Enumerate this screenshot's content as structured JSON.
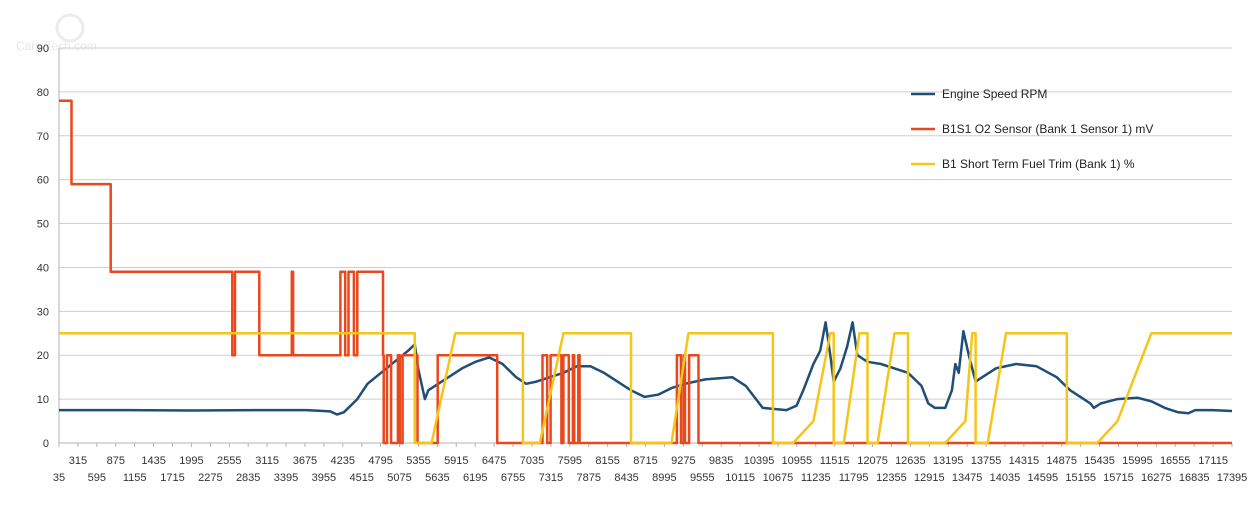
{
  "watermark": "Cars-Tech.com",
  "chart_data": {
    "type": "line",
    "x_first": 35,
    "x_step": 140,
    "x_last": 17395,
    "ylim": [
      0,
      90
    ],
    "y_ticks": [
      0,
      10,
      20,
      30,
      40,
      50,
      60,
      70,
      80,
      90
    ],
    "y_tick_labels": [
      "0",
      "10",
      "20",
      "30",
      "40",
      "50",
      "60",
      "70",
      "80",
      "90"
    ],
    "x_tick_labels_upper": [
      "315",
      "875",
      "1435",
      "1995",
      "2555",
      "3115",
      "3675",
      "4235",
      "4795",
      "5355",
      "5915",
      "6475",
      "7035",
      "7595",
      "8155",
      "8715",
      "9275",
      "9835",
      "10395",
      "10955",
      "11515",
      "12075",
      "12635",
      "13195",
      "13755",
      "14315",
      "14875",
      "15435",
      "15995",
      "16555",
      "17115"
    ],
    "x_tick_labels_lower": [
      "35",
      "595",
      "1155",
      "1715",
      "2275",
      "2835",
      "3395",
      "3955",
      "4515",
      "5075",
      "5635",
      "6195",
      "6755",
      "7315",
      "7875",
      "8435",
      "8995",
      "9555",
      "10115",
      "10675",
      "11235",
      "11795",
      "12355",
      "12915",
      "13475",
      "14035",
      "14595",
      "15155",
      "15715",
      "16275",
      "16835",
      "17395"
    ],
    "grid": "horizontal",
    "legend_position": "right",
    "series": [
      {
        "name": "Engine Speed RPM",
        "color": "#1f4e79",
        "points": [
          [
            35,
            7.5
          ],
          [
            1000,
            7.5
          ],
          [
            2000,
            7.4
          ],
          [
            3000,
            7.5
          ],
          [
            3700,
            7.5
          ],
          [
            4050,
            7.2
          ],
          [
            4150,
            6.5
          ],
          [
            4250,
            7
          ],
          [
            4450,
            10
          ],
          [
            4600,
            13.5
          ],
          [
            4800,
            16
          ],
          [
            5000,
            18.5
          ],
          [
            5200,
            21
          ],
          [
            5300,
            22.5
          ],
          [
            5350,
            17
          ],
          [
            5450,
            10
          ],
          [
            5500,
            12
          ],
          [
            5600,
            13
          ],
          [
            5800,
            15
          ],
          [
            6000,
            17
          ],
          [
            6200,
            18.5
          ],
          [
            6400,
            19.5
          ],
          [
            6600,
            18
          ],
          [
            6800,
            15
          ],
          [
            6950,
            13.5
          ],
          [
            7100,
            14
          ],
          [
            7300,
            15
          ],
          [
            7500,
            16
          ],
          [
            7700,
            17.5
          ],
          [
            7900,
            17.5
          ],
          [
            8100,
            16
          ],
          [
            8300,
            14
          ],
          [
            8500,
            12
          ],
          [
            8700,
            10.5
          ],
          [
            8900,
            11
          ],
          [
            9100,
            12.5
          ],
          [
            9300,
            13.5
          ],
          [
            9600,
            14.5
          ],
          [
            10000,
            15
          ],
          [
            10200,
            13
          ],
          [
            10350,
            10
          ],
          [
            10450,
            8
          ],
          [
            10800,
            7.5
          ],
          [
            10950,
            8.5
          ],
          [
            11050,
            12
          ],
          [
            11200,
            18
          ],
          [
            11300,
            21
          ],
          [
            11380,
            27.5
          ],
          [
            11450,
            20
          ],
          [
            11500,
            14
          ],
          [
            11600,
            17
          ],
          [
            11700,
            22
          ],
          [
            11780,
            27.5
          ],
          [
            11850,
            20
          ],
          [
            12000,
            18.5
          ],
          [
            12200,
            18
          ],
          [
            12400,
            17
          ],
          [
            12600,
            16
          ],
          [
            12800,
            13
          ],
          [
            12900,
            9
          ],
          [
            13000,
            8
          ],
          [
            13150,
            8
          ],
          [
            13250,
            12
          ],
          [
            13300,
            18
          ],
          [
            13350,
            16
          ],
          [
            13420,
            25.5
          ],
          [
            13500,
            20
          ],
          [
            13600,
            14
          ],
          [
            13700,
            15
          ],
          [
            13900,
            17
          ],
          [
            14200,
            18
          ],
          [
            14500,
            17.5
          ],
          [
            14800,
            15
          ],
          [
            15000,
            12
          ],
          [
            15200,
            10
          ],
          [
            15300,
            9
          ],
          [
            15350,
            8
          ],
          [
            15450,
            9
          ],
          [
            15700,
            10
          ],
          [
            16000,
            10.3
          ],
          [
            16200,
            9.5
          ],
          [
            16400,
            8
          ],
          [
            16600,
            7
          ],
          [
            16750,
            6.8
          ],
          [
            16850,
            7.5
          ],
          [
            17100,
            7.5
          ],
          [
            17395,
            7.3
          ]
        ]
      },
      {
        "name": "B1S1 O2 Sensor (Bank 1 Sensor 1) mV",
        "color": "#e8481c",
        "points": [
          [
            35,
            78
          ],
          [
            220,
            78
          ],
          [
            220,
            59
          ],
          [
            800,
            59
          ],
          [
            800,
            39
          ],
          [
            2600,
            39
          ],
          [
            2600,
            20
          ],
          [
            2640,
            20
          ],
          [
            2640,
            39
          ],
          [
            3000,
            39
          ],
          [
            3000,
            20
          ],
          [
            3480,
            20
          ],
          [
            3480,
            39
          ],
          [
            3500,
            39
          ],
          [
            3500,
            20
          ],
          [
            4200,
            20
          ],
          [
            4200,
            39
          ],
          [
            4270,
            39
          ],
          [
            4270,
            20
          ],
          [
            4320,
            20
          ],
          [
            4320,
            39
          ],
          [
            4400,
            39
          ],
          [
            4400,
            20
          ],
          [
            4450,
            20
          ],
          [
            4450,
            39
          ],
          [
            4830,
            39
          ],
          [
            4830,
            20
          ],
          [
            4840,
            20
          ],
          [
            4840,
            0
          ],
          [
            4890,
            0
          ],
          [
            4890,
            20
          ],
          [
            4950,
            20
          ],
          [
            4950,
            0
          ],
          [
            5050,
            0
          ],
          [
            5050,
            20
          ],
          [
            5080,
            20
          ],
          [
            5080,
            0
          ],
          [
            5120,
            0
          ],
          [
            5120,
            20
          ],
          [
            5340,
            20
          ],
          [
            5340,
            0
          ],
          [
            5640,
            0
          ],
          [
            5640,
            20
          ],
          [
            6520,
            20
          ],
          [
            6520,
            0
          ],
          [
            7190,
            0
          ],
          [
            7190,
            20
          ],
          [
            7260,
            20
          ],
          [
            7260,
            0
          ],
          [
            7310,
            0
          ],
          [
            7310,
            20
          ],
          [
            7470,
            20
          ],
          [
            7470,
            0
          ],
          [
            7500,
            0
          ],
          [
            7500,
            20
          ],
          [
            7580,
            20
          ],
          [
            7580,
            0
          ],
          [
            7640,
            0
          ],
          [
            7640,
            20
          ],
          [
            7660,
            20
          ],
          [
            7660,
            0
          ],
          [
            7720,
            0
          ],
          [
            7720,
            20
          ],
          [
            7740,
            20
          ],
          [
            7740,
            0
          ],
          [
            9180,
            0
          ],
          [
            9180,
            20
          ],
          [
            9240,
            20
          ],
          [
            9240,
            0
          ],
          [
            9280,
            0
          ],
          [
            9280,
            20
          ],
          [
            9300,
            20
          ],
          [
            9300,
            0
          ],
          [
            9360,
            0
          ],
          [
            9360,
            20
          ],
          [
            9500,
            20
          ],
          [
            9500,
            0
          ],
          [
            17395,
            0
          ]
        ]
      },
      {
        "name": "B1 Short Term Fuel Trim (Bank 1) %",
        "color": "#f5c518",
        "points": [
          [
            35,
            25
          ],
          [
            5300,
            25
          ],
          [
            5300,
            0
          ],
          [
            5550,
            0
          ],
          [
            5900,
            25
          ],
          [
            6900,
            25
          ],
          [
            6900,
            0
          ],
          [
            7150,
            0
          ],
          [
            7500,
            25
          ],
          [
            8500,
            25
          ],
          [
            8500,
            0
          ],
          [
            9100,
            0
          ],
          [
            9350,
            25
          ],
          [
            10600,
            25
          ],
          [
            10600,
            0
          ],
          [
            10900,
            0
          ],
          [
            11200,
            5
          ],
          [
            11450,
            25
          ],
          [
            11500,
            25
          ],
          [
            11500,
            0
          ],
          [
            11650,
            0
          ],
          [
            11880,
            25
          ],
          [
            12000,
            25
          ],
          [
            12000,
            0
          ],
          [
            12150,
            0
          ],
          [
            12400,
            25
          ],
          [
            12600,
            25
          ],
          [
            12600,
            0
          ],
          [
            13150,
            0
          ],
          [
            13450,
            5
          ],
          [
            13550,
            25
          ],
          [
            13600,
            25
          ],
          [
            13600,
            0
          ],
          [
            13780,
            0
          ],
          [
            14050,
            25
          ],
          [
            14950,
            25
          ],
          [
            14950,
            0
          ],
          [
            15400,
            0
          ],
          [
            15700,
            5
          ],
          [
            16200,
            25
          ],
          [
            17395,
            25
          ]
        ]
      }
    ]
  }
}
